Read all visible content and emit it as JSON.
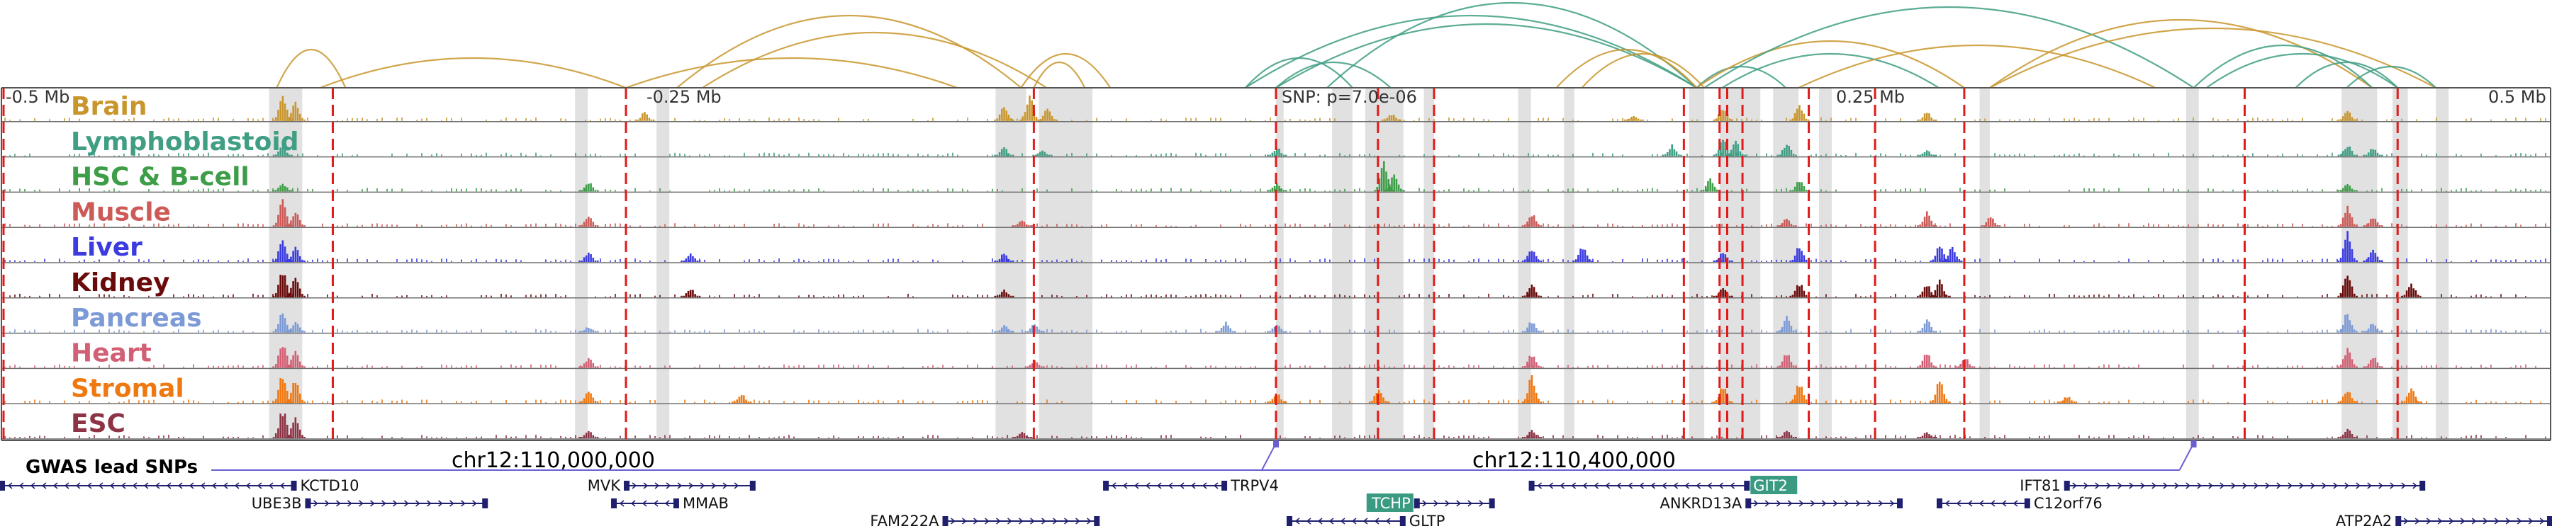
{
  "colors": {
    "arc": "#c9962e",
    "arc_alt": "#3f9e84",
    "frame": "#555555",
    "cre_band": "#dcdcdc",
    "ld_line": "#e11a1a",
    "gene": "#1f1f6e",
    "gwas": "#6a5fd1",
    "highlight_bg": "#3a9b82"
  },
  "positions": {
    "left": "-0.5 Mb",
    "left_mid": "-0.25 Mb",
    "snp": "SNP: p=7.0e-06",
    "right_mid": "0.25 Mb",
    "right": "0.5 Mb"
  },
  "coords": {
    "c1": "chr12:110,000,000",
    "c2": "chr12:110,400,000"
  },
  "gwas_label": "GWAS lead SNPs",
  "chart_data": {
    "type": "area",
    "title": "",
    "x_range_mb": [
      -0.5,
      0.5
    ],
    "x_unit": "Mb relative to lead SNP",
    "region_start_mb": 109.87,
    "region_end_mb": 110.87,
    "snp_offset_mb": 0.0,
    "tracks": [
      {
        "name": "Brain",
        "color": "#c9962e",
        "peaks": [
          [
            -0.39,
            1.0
          ],
          [
            -0.385,
            0.7
          ],
          [
            -0.248,
            0.3
          ],
          [
            -0.107,
            0.6
          ],
          [
            -0.097,
            0.9
          ],
          [
            -0.09,
            0.5
          ],
          [
            0.045,
            0.25
          ],
          [
            0.14,
            0.2
          ],
          [
            0.175,
            0.5
          ],
          [
            0.205,
            0.6
          ],
          [
            0.255,
            0.35
          ],
          [
            0.42,
            0.35
          ]
        ]
      },
      {
        "name": "Lymphoblastoid",
        "color": "#3f9e84",
        "peaks": [
          [
            -0.39,
            0.35
          ],
          [
            -0.107,
            0.3
          ],
          [
            -0.092,
            0.2
          ],
          [
            0.0,
            0.3
          ],
          [
            0.155,
            0.4
          ],
          [
            0.175,
            0.6
          ],
          [
            0.18,
            0.5
          ],
          [
            0.2,
            0.45
          ],
          [
            0.255,
            0.2
          ],
          [
            0.42,
            0.4
          ],
          [
            0.43,
            0.3
          ]
        ]
      },
      {
        "name": "HSC & B-cell",
        "color": "#3e9e48",
        "peaks": [
          [
            -0.39,
            0.3
          ],
          [
            -0.27,
            0.35
          ],
          [
            0.0,
            0.3
          ],
          [
            0.042,
            1.0
          ],
          [
            0.046,
            0.6
          ],
          [
            0.17,
            0.45
          ],
          [
            0.205,
            0.4
          ],
          [
            0.42,
            0.25
          ]
        ]
      },
      {
        "name": "Muscle",
        "color": "#cc5a57",
        "peaks": [
          [
            -0.39,
            0.9
          ],
          [
            -0.385,
            0.5
          ],
          [
            -0.27,
            0.4
          ],
          [
            -0.1,
            0.2
          ],
          [
            0.1,
            0.45
          ],
          [
            0.2,
            0.3
          ],
          [
            0.255,
            0.5
          ],
          [
            0.28,
            0.35
          ],
          [
            0.42,
            0.7
          ],
          [
            0.43,
            0.35
          ]
        ]
      },
      {
        "name": "Liver",
        "color": "#3b3be0",
        "peaks": [
          [
            -0.39,
            0.8
          ],
          [
            -0.385,
            0.5
          ],
          [
            -0.27,
            0.35
          ],
          [
            -0.23,
            0.3
          ],
          [
            -0.107,
            0.3
          ],
          [
            0.1,
            0.5
          ],
          [
            0.12,
            0.55
          ],
          [
            0.175,
            0.35
          ],
          [
            0.205,
            0.6
          ],
          [
            0.26,
            0.6
          ],
          [
            0.265,
            0.55
          ],
          [
            0.42,
            1.0
          ],
          [
            0.43,
            0.4
          ]
        ]
      },
      {
        "name": "Kidney",
        "color": "#6a0b0b",
        "peaks": [
          [
            -0.39,
            1.0
          ],
          [
            -0.385,
            0.7
          ],
          [
            -0.23,
            0.3
          ],
          [
            -0.107,
            0.25
          ],
          [
            0.1,
            0.45
          ],
          [
            0.175,
            0.3
          ],
          [
            0.205,
            0.5
          ],
          [
            0.255,
            0.45
          ],
          [
            0.26,
            0.6
          ],
          [
            0.42,
            0.85
          ],
          [
            0.445,
            0.5
          ]
        ]
      },
      {
        "name": "Pancreas",
        "color": "#7b9ad6",
        "peaks": [
          [
            -0.39,
            0.7
          ],
          [
            -0.385,
            0.4
          ],
          [
            -0.27,
            0.2
          ],
          [
            -0.107,
            0.25
          ],
          [
            -0.095,
            0.3
          ],
          [
            -0.02,
            0.35
          ],
          [
            0.0,
            0.3
          ],
          [
            0.1,
            0.4
          ],
          [
            0.2,
            0.55
          ],
          [
            0.255,
            0.45
          ],
          [
            0.42,
            0.7
          ],
          [
            0.43,
            0.35
          ]
        ]
      },
      {
        "name": "Heart",
        "color": "#d25f74",
        "peaks": [
          [
            -0.39,
            0.9
          ],
          [
            -0.385,
            0.6
          ],
          [
            -0.27,
            0.35
          ],
          [
            -0.095,
            0.25
          ],
          [
            0.1,
            0.5
          ],
          [
            0.2,
            0.55
          ],
          [
            0.255,
            0.55
          ],
          [
            0.27,
            0.35
          ],
          [
            0.42,
            0.7
          ],
          [
            0.43,
            0.4
          ]
        ]
      },
      {
        "name": "Stromal",
        "color": "#f07810",
        "peaks": [
          [
            -0.39,
            1.0
          ],
          [
            -0.385,
            0.8
          ],
          [
            -0.27,
            0.45
          ],
          [
            -0.21,
            0.3
          ],
          [
            0.0,
            0.35
          ],
          [
            0.04,
            0.55
          ],
          [
            0.1,
            0.95
          ],
          [
            0.175,
            0.6
          ],
          [
            0.205,
            0.7
          ],
          [
            0.26,
            0.8
          ],
          [
            0.31,
            0.25
          ],
          [
            0.42,
            0.5
          ],
          [
            0.445,
            0.55
          ]
        ]
      },
      {
        "name": "ESC",
        "color": "#8c3345",
        "peaks": [
          [
            -0.39,
            1.0
          ],
          [
            -0.385,
            0.8
          ],
          [
            -0.27,
            0.25
          ],
          [
            -0.1,
            0.2
          ],
          [
            0.1,
            0.3
          ],
          [
            0.2,
            0.25
          ],
          [
            0.255,
            0.2
          ],
          [
            0.42,
            0.35
          ]
        ]
      }
    ],
    "ld_lines_mb": [
      -0.5,
      -0.37,
      -0.255,
      -0.095,
      0.0,
      0.04,
      0.062,
      0.16,
      0.174,
      0.177,
      0.183,
      0.209,
      0.235,
      0.27,
      0.38,
      0.44
    ],
    "cre_bands_mb": [
      [
        -0.395,
        -0.382
      ],
      [
        -0.275,
        -0.27
      ],
      [
        -0.243,
        -0.238
      ],
      [
        -0.11,
        -0.098
      ],
      [
        -0.093,
        -0.072
      ],
      [
        0.0,
        0.003
      ],
      [
        0.022,
        0.03
      ],
      [
        0.035,
        0.05
      ],
      [
        0.058,
        0.062
      ],
      [
        0.095,
        0.1
      ],
      [
        0.113,
        0.117
      ],
      [
        0.162,
        0.168
      ],
      [
        0.174,
        0.19
      ],
      [
        0.195,
        0.205
      ],
      [
        0.213,
        0.218
      ],
      [
        0.276,
        0.28
      ],
      [
        0.357,
        0.362
      ],
      [
        0.418,
        0.432
      ],
      [
        0.438,
        0.444
      ],
      [
        0.455,
        0.46
      ]
    ],
    "loops_mb": [
      {
        "from": -0.392,
        "to": -0.365,
        "color": "arc",
        "h": 0.45
      },
      {
        "from": -0.375,
        "to": -0.255,
        "color": "arc",
        "h": 0.35
      },
      {
        "from": -0.255,
        "to": -0.125,
        "color": "arc",
        "h": 0.35
      },
      {
        "from": -0.235,
        "to": -0.1,
        "color": "arc",
        "h": 0.85
      },
      {
        "from": -0.225,
        "to": -0.09,
        "color": "arc",
        "h": 0.65
      },
      {
        "from": -0.1,
        "to": -0.065,
        "color": "arc",
        "h": 0.4
      },
      {
        "from": -0.095,
        "to": -0.075,
        "color": "arc",
        "h": 0.3
      },
      {
        "from": -0.012,
        "to": 0.165,
        "color": "arc_alt",
        "h": 0.85
      },
      {
        "from": 0.0,
        "to": 0.165,
        "color": "arc_alt",
        "h": 0.75
      },
      {
        "from": 0.02,
        "to": 0.165,
        "color": "arc_alt",
        "h": 1.0
      },
      {
        "from": -0.012,
        "to": 0.03,
        "color": "arc_alt",
        "h": 0.35
      },
      {
        "from": 0.0,
        "to": 0.045,
        "color": "arc_alt",
        "h": 0.3
      },
      {
        "from": 0.11,
        "to": 0.165,
        "color": "arc",
        "h": 0.45
      },
      {
        "from": 0.12,
        "to": 0.168,
        "color": "arc",
        "h": 0.4
      },
      {
        "from": 0.165,
        "to": 0.2,
        "color": "arc_alt",
        "h": 0.25
      },
      {
        "from": 0.165,
        "to": 0.27,
        "color": "arc",
        "h": 0.55
      },
      {
        "from": 0.175,
        "to": 0.26,
        "color": "arc_alt",
        "h": 0.4
      },
      {
        "from": 0.168,
        "to": 0.36,
        "color": "arc_alt",
        "h": 0.95
      },
      {
        "from": 0.205,
        "to": 0.345,
        "color": "arc",
        "h": 0.5
      },
      {
        "from": 0.28,
        "to": 0.43,
        "color": "arc",
        "h": 0.8
      },
      {
        "from": 0.28,
        "to": 0.455,
        "color": "arc",
        "h": 0.7
      },
      {
        "from": 0.365,
        "to": 0.44,
        "color": "arc_alt",
        "h": 0.4
      },
      {
        "from": 0.4,
        "to": 0.44,
        "color": "arc_alt",
        "h": 0.3
      },
      {
        "from": 0.42,
        "to": 0.455,
        "color": "arc_alt",
        "h": 0.25
      },
      {
        "from": 0.36,
        "to": 0.43,
        "color": "arc_alt",
        "h": 0.5
      }
    ],
    "gwas_snps_mb": [
      0.0,
      0.36
    ],
    "genes": [
      {
        "name": "KCTD10",
        "start": -0.5,
        "end": -0.385,
        "row": 0,
        "strand": "-",
        "label": "right"
      },
      {
        "name": "UBE3B",
        "start": -0.38,
        "end": -0.31,
        "row": 1,
        "strand": "+",
        "label": "left"
      },
      {
        "name": "MVK",
        "start": -0.255,
        "end": -0.205,
        "row": 0,
        "strand": "+",
        "label": "left"
      },
      {
        "name": "MMAB",
        "start": -0.26,
        "end": -0.235,
        "row": 1,
        "strand": "-",
        "label": "right"
      },
      {
        "name": "FAM222A",
        "start": -0.13,
        "end": -0.07,
        "row": 2,
        "strand": "+",
        "label": "left"
      },
      {
        "name": "TRPV4",
        "start": -0.067,
        "end": -0.02,
        "row": 0,
        "strand": "-",
        "label": "right"
      },
      {
        "name": "TCHP",
        "start": 0.055,
        "end": 0.085,
        "row": 1,
        "strand": "+",
        "label": "left",
        "highlight": true
      },
      {
        "name": "GLTP",
        "start": 0.005,
        "end": 0.05,
        "row": 2,
        "strand": "-",
        "label": "right"
      },
      {
        "name": "GIT2",
        "start": 0.1,
        "end": 0.185,
        "row": 0,
        "strand": "-",
        "label": "right",
        "highlight": true
      },
      {
        "name": "ANKRD13A",
        "start": 0.185,
        "end": 0.245,
        "row": 1,
        "strand": "+",
        "label": "left"
      },
      {
        "name": "C12orf76",
        "start": 0.26,
        "end": 0.295,
        "row": 1,
        "strand": "-",
        "label": "right"
      },
      {
        "name": "IFT81",
        "start": 0.31,
        "end": 0.45,
        "row": 0,
        "strand": "+",
        "label": "left"
      },
      {
        "name": "ATP2A2",
        "start": 0.44,
        "end": 0.5,
        "row": 2,
        "strand": "+",
        "label": "left"
      }
    ]
  }
}
